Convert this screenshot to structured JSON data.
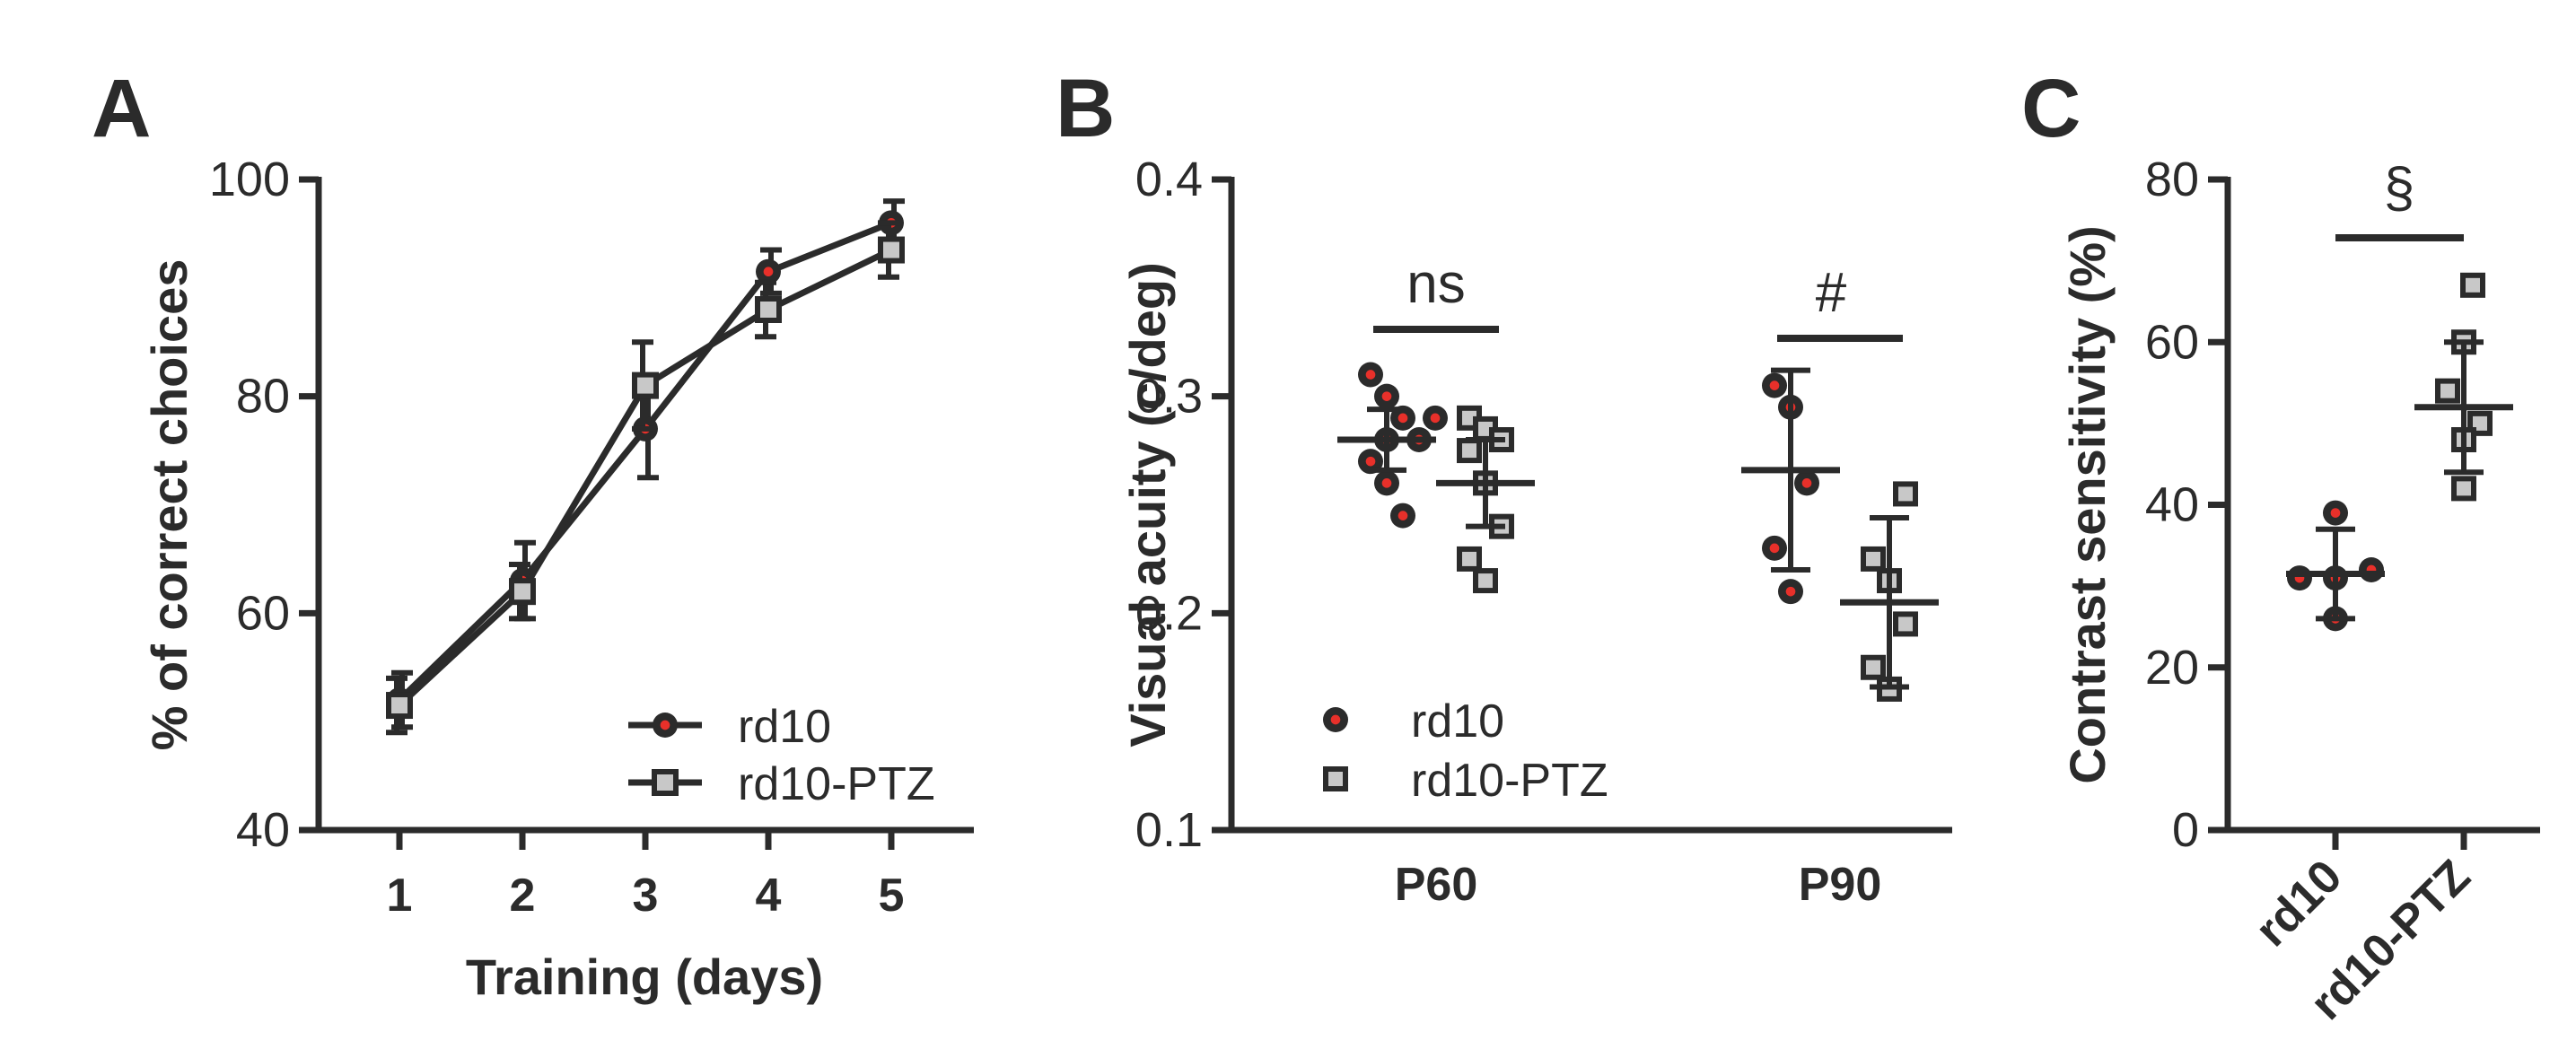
{
  "colors": {
    "ink": "#2b2b2b",
    "rd10_dot": "#e8302a",
    "ptz_fill": "#c8c8c8"
  },
  "panels": [
    {
      "letter": "A",
      "chart_data": {
        "type": "line",
        "x": [
          1,
          2,
          3,
          4,
          5
        ],
        "xticks": [
          "1",
          "2",
          "3",
          "4",
          "5"
        ],
        "xlabel": "Training (days)",
        "ylabel": "% of correct choices",
        "ylim": [
          40,
          100
        ],
        "yticks": [
          "40",
          "60",
          "80",
          "100"
        ],
        "series": [
          {
            "name": "rd10",
            "marker": "circle",
            "values": [
              52,
              63,
              77,
              91.5,
              96
            ],
            "err": [
              2.5,
              3.5,
              4.5,
              2.0,
              2.0
            ]
          },
          {
            "name": "rd10-PTZ",
            "marker": "square",
            "values": [
              51.5,
              62,
              81,
              88,
              93.5
            ],
            "err": [
              2.5,
              2.5,
              4.0,
              2.5,
              2.5
            ]
          }
        ],
        "legend_position": "bottom-right",
        "grid": false
      }
    },
    {
      "letter": "B",
      "chart_data": {
        "type": "scatter",
        "categories": [
          "P60",
          "P90"
        ],
        "ylabel": "Visual acuity (c/deg)",
        "ylim": [
          0.1,
          0.4
        ],
        "yticks": [
          "0.1",
          "0.2",
          "0.3",
          "0.4"
        ],
        "series": [
          {
            "name": "rd10",
            "marker": "circle",
            "points": [
              [
                0,
                0.31
              ],
              [
                0,
                0.3
              ],
              [
                0,
                0.29
              ],
              [
                0,
                0.29
              ],
              [
                0,
                0.28
              ],
              [
                0,
                0.28
              ],
              [
                0,
                0.27
              ],
              [
                0,
                0.26
              ],
              [
                0,
                0.245
              ],
              [
                1,
                0.305
              ],
              [
                1,
                0.295
              ],
              [
                1,
                0.26
              ],
              [
                1,
                0.23
              ],
              [
                1,
                0.21
              ]
            ],
            "mean": [
              0.28,
              0.266
            ],
            "sd": [
              0.014,
              0.046
            ]
          },
          {
            "name": "rd10-PTZ",
            "marker": "square",
            "points": [
              [
                0,
                0.29
              ],
              [
                0,
                0.285
              ],
              [
                0,
                0.28
              ],
              [
                0,
                0.275
              ],
              [
                0,
                0.26
              ],
              [
                0,
                0.24
              ],
              [
                0,
                0.225
              ],
              [
                0,
                0.215
              ],
              [
                1,
                0.255
              ],
              [
                1,
                0.225
              ],
              [
                1,
                0.215
              ],
              [
                1,
                0.195
              ],
              [
                1,
                0.175
              ],
              [
                1,
                0.165
              ]
            ],
            "mean": [
              0.26,
              0.205
            ],
            "sd": [
              0.02,
              0.039
            ]
          }
        ],
        "annotations": [
          {
            "text": "ns",
            "category": "P60"
          },
          {
            "text": "#",
            "category": "P90"
          }
        ],
        "legend_position": "bottom-left",
        "grid": false
      }
    },
    {
      "letter": "C",
      "chart_data": {
        "type": "scatter",
        "categories": [
          "rd10",
          "rd10-PTZ"
        ],
        "ylabel": "Contrast sensitivity (%)",
        "ylim": [
          0,
          80
        ],
        "yticks": [
          "0",
          "20",
          "40",
          "60",
          "80"
        ],
        "series": [
          {
            "name": "rd10",
            "marker": "circle",
            "points": [
              [
                0,
                39
              ],
              [
                0,
                32
              ],
              [
                0,
                31
              ],
              [
                0,
                31
              ],
              [
                0,
                26
              ]
            ],
            "mean": [
              31.5
            ],
            "sd": [
              5.5
            ]
          },
          {
            "name": "rd10-PTZ",
            "marker": "square",
            "points": [
              [
                1,
                67
              ],
              [
                1,
                60
              ],
              [
                1,
                54
              ],
              [
                1,
                50
              ],
              [
                1,
                48
              ],
              [
                1,
                42
              ]
            ],
            "mean": [
              52
            ],
            "sd": [
              8
            ]
          }
        ],
        "annotations": [
          {
            "text": "§"
          }
        ],
        "grid": false
      }
    }
  ]
}
